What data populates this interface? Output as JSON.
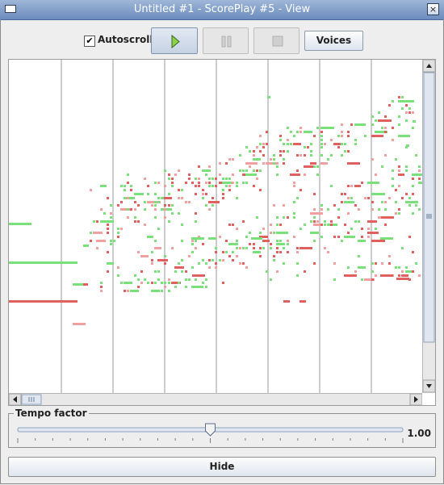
{
  "window": {
    "title": "Untitled #1 - ScorePlay #5 - View",
    "close_glyph": "×"
  },
  "toolbar": {
    "autoscroll_label": "Autoscroll",
    "autoscroll_checked": true,
    "check_glyph": "✔",
    "voices_label": "Voices"
  },
  "tempo": {
    "legend": "Tempo factor",
    "value_text": "1.00",
    "slider_fraction": 0.5
  },
  "hide_label": "Hide",
  "colors": {
    "green_note": "#7ae07a",
    "red_note": "#e06060",
    "pink_note": "#f0a0a0",
    "grid_line": "#9a9a9a"
  }
}
